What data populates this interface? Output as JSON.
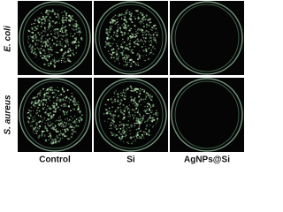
{
  "rows": [
    {
      "label": "E. coli"
    },
    {
      "label": "S. aureus"
    }
  ],
  "columns": [
    {
      "label": "Control"
    },
    {
      "label": "Si"
    },
    {
      "label": "AgNPs@Si"
    }
  ]
}
